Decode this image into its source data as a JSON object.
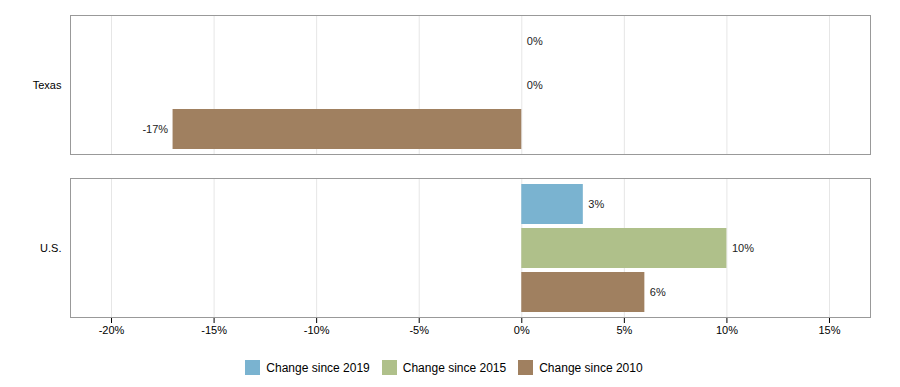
{
  "chart_data": {
    "type": "bar",
    "orientation": "horizontal",
    "categories": [
      "Texas",
      "U.S."
    ],
    "series": [
      {
        "name": "Change since 2019",
        "color": "#7ab3d0",
        "values": [
          0,
          3
        ],
        "value_labels": [
          "0%",
          "3%"
        ]
      },
      {
        "name": "Change since 2015",
        "color": "#afc08a",
        "values": [
          0,
          10
        ],
        "value_labels": [
          "0%",
          "10%"
        ]
      },
      {
        "name": "Change since 2010",
        "color": "#a08060",
        "values": [
          -17,
          6
        ],
        "value_labels": [
          "-17%",
          "6%"
        ]
      }
    ],
    "xlim": [
      -22,
      17
    ],
    "xticks": [
      {
        "value": -20,
        "label": "-20%"
      },
      {
        "value": -15,
        "label": "-15%"
      },
      {
        "value": -10,
        "label": "-10%"
      },
      {
        "value": -5,
        "label": "-5%"
      },
      {
        "value": 0,
        "label": "0%"
      },
      {
        "value": 5,
        "label": "5%"
      },
      {
        "value": 10,
        "label": "10%"
      },
      {
        "value": 15,
        "label": "15%"
      }
    ],
    "grid": true,
    "data_labels": true,
    "legend": "bottom"
  }
}
